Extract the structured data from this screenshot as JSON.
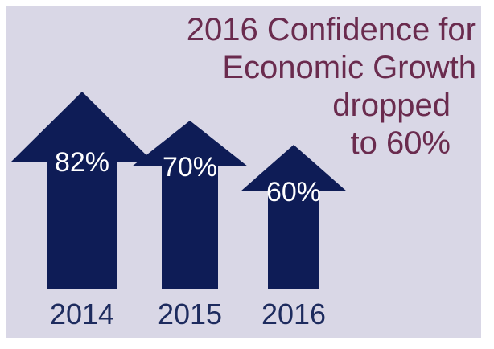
{
  "colors": {
    "panel": "#d9d7e6",
    "arrow": "#0e1c56",
    "title": "#6a2b4e",
    "year": "#1d2b5e",
    "label": "#ffffff"
  },
  "title": {
    "line1": "2016 Confidence for",
    "line2": "Economic Growth",
    "line3": "dropped",
    "line4": "to 60%"
  },
  "chart_data": {
    "type": "bar",
    "categories": [
      "2014",
      "2015",
      "2016"
    ],
    "values": [
      82,
      70,
      60
    ],
    "data_labels": [
      "82%",
      "70%",
      "60%"
    ],
    "title": "2016 Confidence for Economic Growth dropped to 60%",
    "unit": "%"
  }
}
